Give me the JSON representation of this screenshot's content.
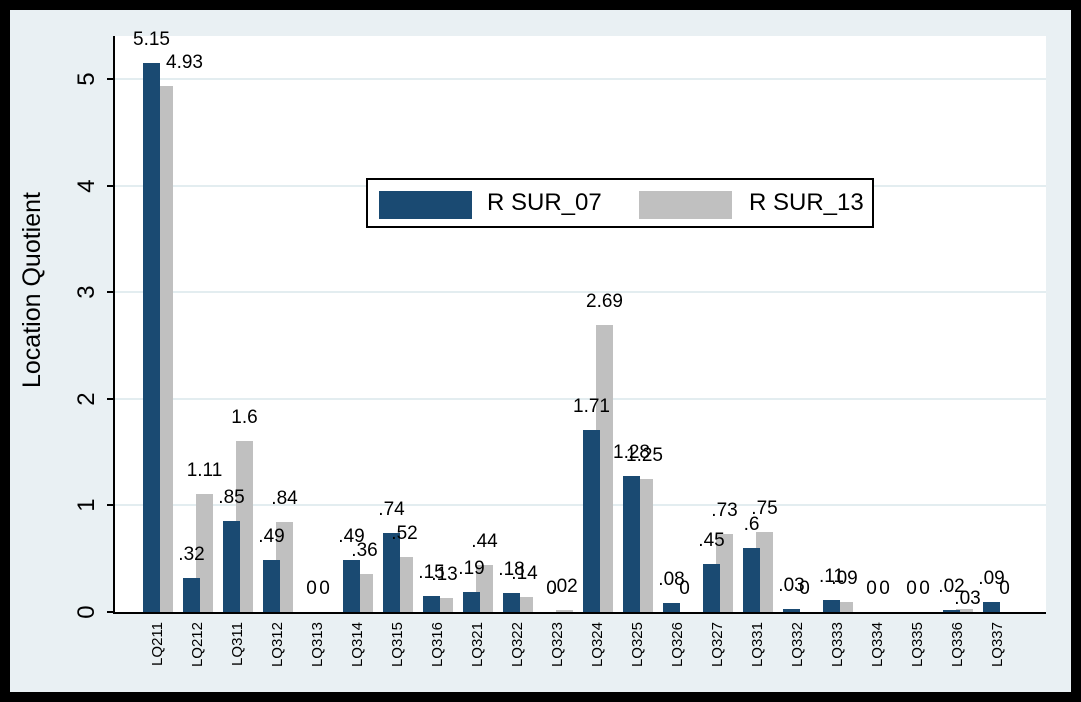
{
  "chart_data": {
    "type": "bar",
    "title": "",
    "xlabel": "",
    "ylabel": "Location Quotient",
    "ylim": [
      0,
      5.4
    ],
    "yticks": [
      0,
      1,
      2,
      3,
      4,
      5
    ],
    "grid": "horizontal",
    "legend_position": "upper-center-inside",
    "colors": {
      "series1": "#1a4a72",
      "series2": "#c0c0c0",
      "plot_background": "#ffffff",
      "outer_background": "#e9f0f3",
      "gridline": "#e3edf0",
      "frame": "#000000",
      "text": "#000000"
    },
    "categories": [
      "LQ211",
      "LQ212",
      "LQ311",
      "LQ312",
      "LQ313",
      "LQ314",
      "LQ315",
      "LQ316",
      "LQ321",
      "LQ322",
      "LQ323",
      "LQ324",
      "LQ325",
      "LQ326",
      "LQ327",
      "LQ331",
      "LQ332",
      "LQ333",
      "LQ334",
      "LQ335",
      "LQ336",
      "LQ337"
    ],
    "series": [
      {
        "name": "R SUR_07",
        "color": "#1a4a72",
        "values": [
          5.15,
          0.32,
          0.85,
          0.49,
          0,
          0.49,
          0.74,
          0.15,
          0.19,
          0.18,
          0,
          1.71,
          1.28,
          0.08,
          0.45,
          0.6,
          0.03,
          0.11,
          0,
          0,
          0.02,
          0.09
        ],
        "labels": [
          "5.15",
          ".32",
          ".85",
          ".49",
          "0",
          ".49",
          ".74",
          ".15",
          ".19",
          ".18",
          "0",
          "1.71",
          "1.28",
          ".08",
          ".45",
          ".6",
          ".03",
          ".11",
          "0",
          "0",
          ".02",
          ".09"
        ]
      },
      {
        "name": "R SUR_13",
        "color": "#c0c0c0",
        "values": [
          4.93,
          1.11,
          1.6,
          0.84,
          0,
          0.36,
          0.52,
          0.13,
          0.44,
          0.14,
          0.02,
          2.69,
          1.25,
          0,
          0.73,
          0.75,
          0,
          0.09,
          0,
          0,
          0.03,
          0
        ],
        "labels": [
          "4.93",
          "1.11",
          "1.6",
          ".84",
          "0",
          ".36",
          ".52",
          ".13",
          ".44",
          ".14",
          ".02",
          "2.69",
          "1.25",
          "0",
          ".73",
          ".75",
          "0",
          ".09",
          "0",
          "0",
          ".03",
          "0"
        ],
        "label_offsets": {
          "0": {
            "dx": 20,
            "dy": 0
          },
          "20": {
            "dx": 3,
            "dy": 13
          }
        }
      }
    ]
  }
}
